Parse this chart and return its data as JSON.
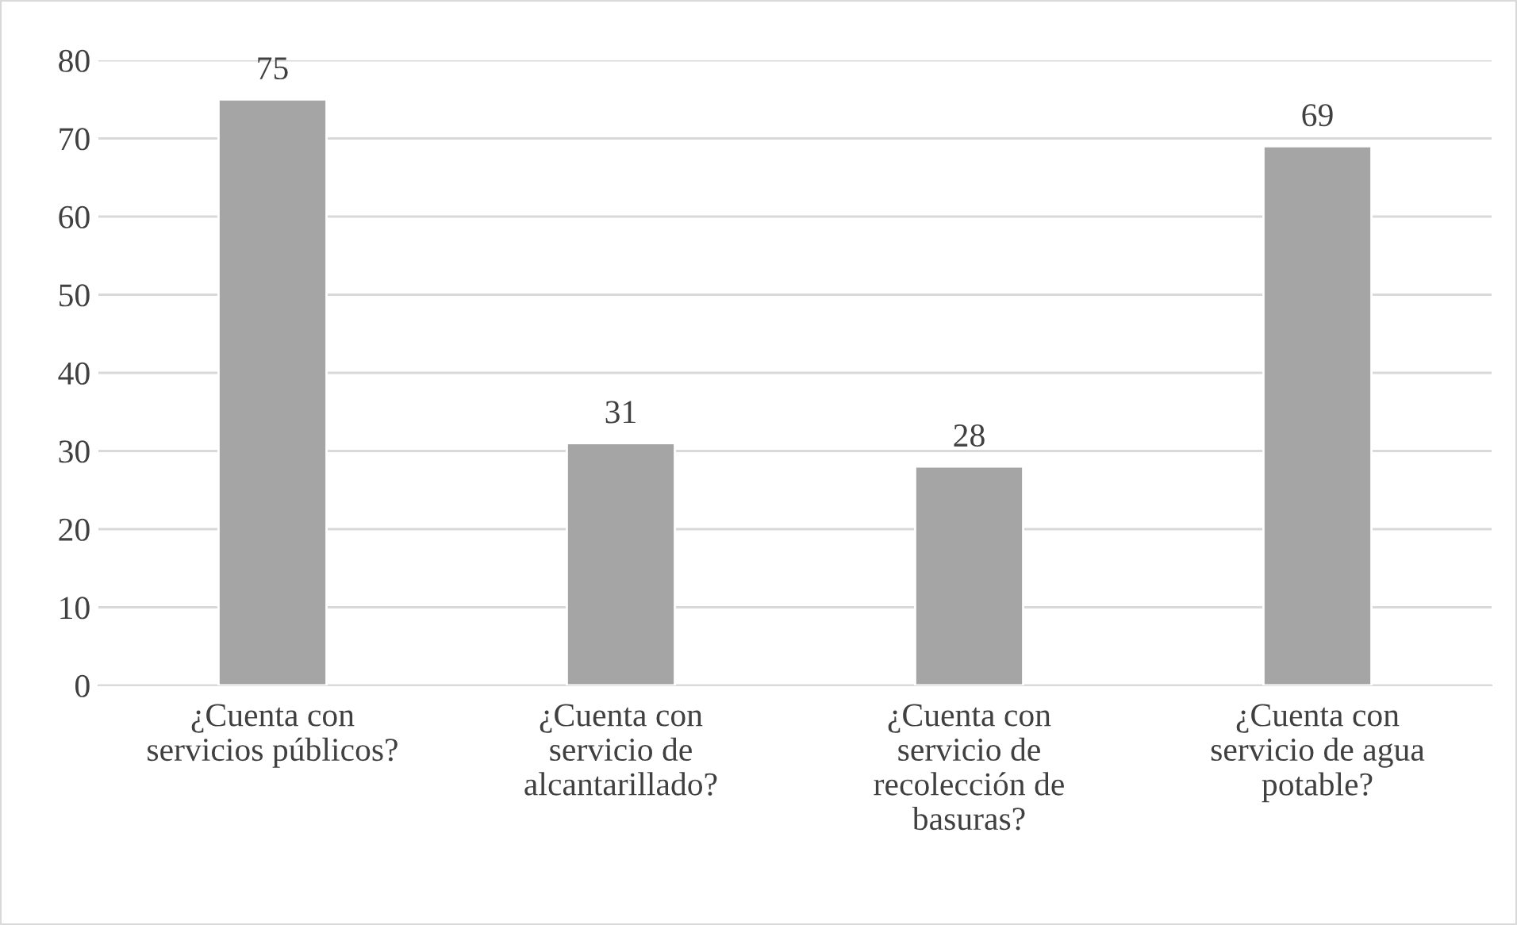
{
  "chart_data": {
    "type": "bar",
    "categories": [
      "¿Cuenta con\nservicios públicos?",
      "¿Cuenta con\nservicio de\nalcantarillado?",
      "¿Cuenta con\nservicio de\nrecolección de\nbasuras?",
      "¿Cuenta con\nservicio de agua\npotable?"
    ],
    "values": [
      75,
      31,
      28,
      69
    ],
    "color": "#a5a5a5",
    "ylim": [
      0,
      80
    ],
    "yticks": [
      0,
      10,
      20,
      30,
      40,
      50,
      60,
      70,
      80
    ],
    "grid": "y",
    "data_labels": true,
    "legend": false
  }
}
